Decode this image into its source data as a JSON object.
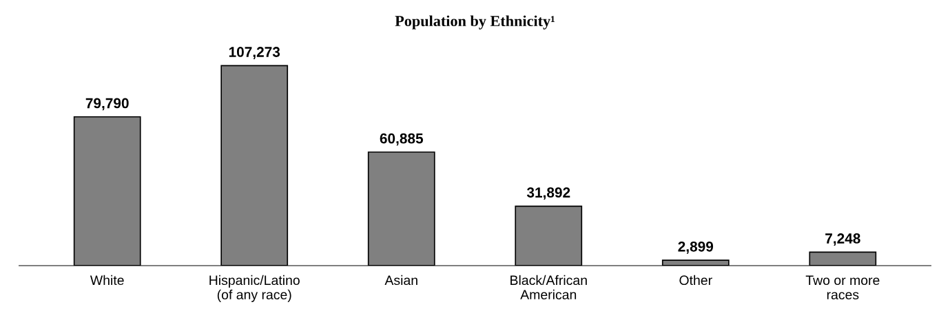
{
  "chart_data": {
    "type": "bar",
    "title": "Population by Ethnicity¹",
    "categories": [
      "White",
      "Hispanic/Latino\n(of any race)",
      "Asian",
      "Black/African\nAmerican",
      "Other",
      "Two or more\nraces"
    ],
    "values": [
      79790,
      107273,
      60885,
      31892,
      2899,
      7248
    ],
    "value_labels": [
      "79,790",
      "107,273",
      "60,885",
      "31,892",
      "2,899",
      "7,248"
    ],
    "color": "#808080",
    "grid": false
  }
}
